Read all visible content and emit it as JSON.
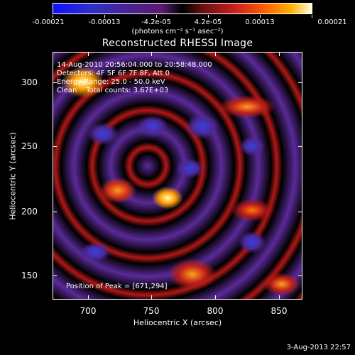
{
  "colorbar": {
    "ticks": [
      "-0.00021",
      "-0.00013",
      "-4.2e-05",
      "4.2e-05",
      "0.00013",
      "0.00021"
    ],
    "units": "(photons cm⁻² s⁻¹ asec⁻²)",
    "colors": [
      "#1010ff",
      "#5a1a70",
      "#000000",
      "#c81e1e",
      "#ff6000",
      "#ffffe0"
    ]
  },
  "title": "Reconstructed RHESSI Image",
  "plot_text": {
    "time_range": "14-Aug-2010 20:56:04.000 to 20:58:48.000",
    "detectors": "Detectors: 4F 5F 6F 7F 8F, Att 0",
    "energy": "Energy Range: 25.0 - 50.0 keV",
    "clean": "Clean    Total counts: 3.67E+03",
    "peak": "Position of Peak = [671,294]"
  },
  "axes": {
    "ylabel": "Heliocentric Y (arcsec)",
    "xlabel": "Heliocentric X (arcsec)",
    "yticks": [
      "300",
      "250",
      "200",
      "150"
    ],
    "xticks": [
      "700",
      "750",
      "800",
      "850"
    ]
  },
  "timestamp": "3-Aug-2013 22:57"
}
